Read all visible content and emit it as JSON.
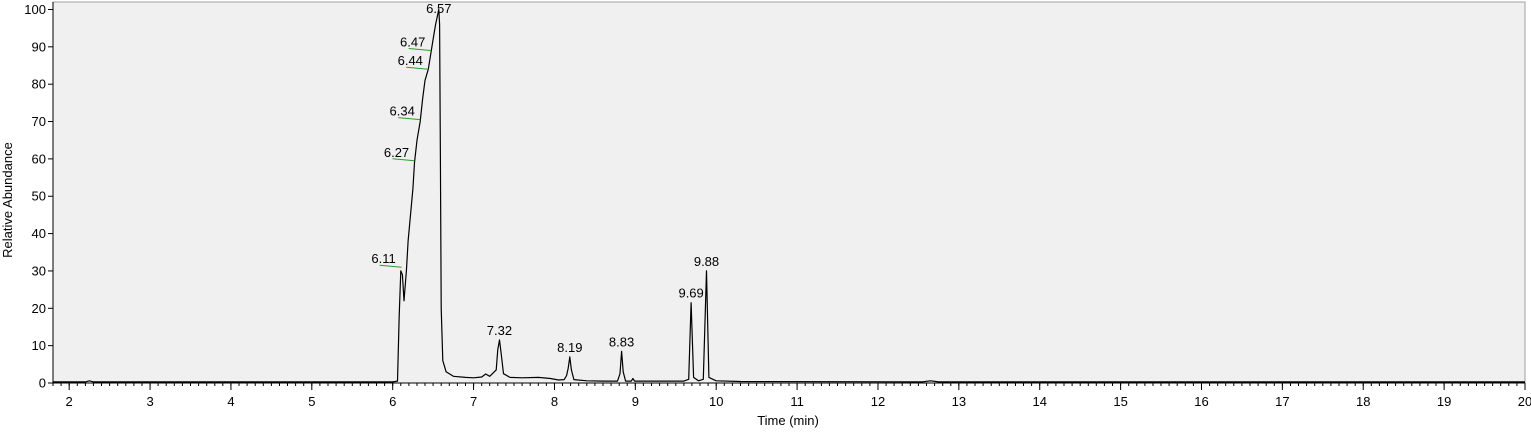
{
  "chart_data": {
    "type": "line",
    "title": "",
    "xlabel": "Time (min)",
    "ylabel": "Relative Abundance",
    "xlim": [
      1.8,
      20
    ],
    "ylim": [
      0,
      102
    ],
    "x_ticks": [
      2,
      3,
      4,
      5,
      6,
      7,
      8,
      9,
      10,
      11,
      12,
      13,
      14,
      15,
      16,
      17,
      18,
      19,
      20
    ],
    "y_ticks": [
      0,
      10,
      20,
      30,
      40,
      50,
      60,
      70,
      80,
      90,
      100
    ],
    "grid": false,
    "legend": "none",
    "colors": {
      "background": "#f0f0f0",
      "trace": "#000000",
      "marker": "#2a9d2a"
    },
    "series": [
      {
        "points": [
          [
            1.8,
            0.3
          ],
          [
            2.2,
            0.3
          ],
          [
            2.25,
            0.6
          ],
          [
            2.3,
            0.3
          ],
          [
            5.5,
            0.3
          ],
          [
            6.0,
            0.3
          ],
          [
            6.06,
            0.5
          ],
          [
            6.08,
            18
          ],
          [
            6.1,
            30
          ],
          [
            6.12,
            29
          ],
          [
            6.14,
            22
          ],
          [
            6.17,
            30
          ],
          [
            6.19,
            38
          ],
          [
            6.22,
            45
          ],
          [
            6.25,
            52
          ],
          [
            6.27,
            59
          ],
          [
            6.3,
            65
          ],
          [
            6.34,
            70
          ],
          [
            6.37,
            76
          ],
          [
            6.4,
            81
          ],
          [
            6.44,
            84
          ],
          [
            6.47,
            88
          ],
          [
            6.5,
            92
          ],
          [
            6.53,
            96
          ],
          [
            6.57,
            100
          ],
          [
            6.58,
            96
          ],
          [
            6.59,
            60
          ],
          [
            6.6,
            20
          ],
          [
            6.62,
            6
          ],
          [
            6.66,
            3
          ],
          [
            6.75,
            1.8
          ],
          [
            6.9,
            1.5
          ],
          [
            7.0,
            1.4
          ],
          [
            7.1,
            1.6
          ],
          [
            7.15,
            2.4
          ],
          [
            7.2,
            1.8
          ],
          [
            7.28,
            3.5
          ],
          [
            7.3,
            9
          ],
          [
            7.32,
            11.5
          ],
          [
            7.34,
            8
          ],
          [
            7.37,
            2.5
          ],
          [
            7.45,
            1.5
          ],
          [
            7.6,
            1.4
          ],
          [
            7.8,
            1.5
          ],
          [
            7.95,
            1.2
          ],
          [
            8.05,
            0.8
          ],
          [
            8.12,
            0.9
          ],
          [
            8.15,
            2
          ],
          [
            8.17,
            4
          ],
          [
            8.19,
            7
          ],
          [
            8.21,
            3.5
          ],
          [
            8.24,
            0.9
          ],
          [
            8.4,
            0.6
          ],
          [
            8.6,
            0.5
          ],
          [
            8.78,
            0.5
          ],
          [
            8.81,
            2.5
          ],
          [
            8.83,
            8.5
          ],
          [
            8.85,
            3
          ],
          [
            8.88,
            0.5
          ],
          [
            8.95,
            0.5
          ],
          [
            8.97,
            1.2
          ],
          [
            8.99,
            0.5
          ],
          [
            9.6,
            0.5
          ],
          [
            9.66,
            1
          ],
          [
            9.69,
            21.5
          ],
          [
            9.72,
            1.5
          ],
          [
            9.78,
            0.6
          ],
          [
            9.84,
            1
          ],
          [
            9.88,
            30
          ],
          [
            9.91,
            1.5
          ],
          [
            10.0,
            0.6
          ],
          [
            10.3,
            0.4
          ],
          [
            12.55,
            0.3
          ],
          [
            12.65,
            0.6
          ],
          [
            12.75,
            0.3
          ],
          [
            20.0,
            0.3
          ]
        ]
      }
    ],
    "peak_labels": [
      {
        "label": "6.11",
        "x": 6.11,
        "y": 31
      },
      {
        "label": "6.27",
        "x": 6.27,
        "y": 59.5
      },
      {
        "label": "6.34",
        "x": 6.34,
        "y": 70.5
      },
      {
        "label": "6.44",
        "x": 6.44,
        "y": 84
      },
      {
        "label": "6.47",
        "x": 6.47,
        "y": 89
      },
      {
        "label": "6.57",
        "x": 6.57,
        "y": 100
      },
      {
        "label": "7.32",
        "x": 7.32,
        "y": 11.5
      },
      {
        "label": "8.19",
        "x": 8.19,
        "y": 7
      },
      {
        "label": "8.83",
        "x": 8.83,
        "y": 8.5
      },
      {
        "label": "9.69",
        "x": 9.69,
        "y": 21.5
      },
      {
        "label": "9.88",
        "x": 9.88,
        "y": 30
      }
    ]
  }
}
